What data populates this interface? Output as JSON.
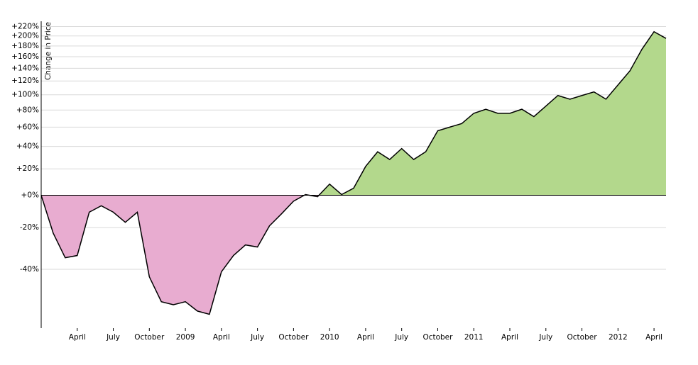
{
  "chart_data": {
    "type": "area",
    "y_label": "Change in Price",
    "y_scale": "log",
    "grid": true,
    "positive_color": "#b3d88c",
    "negative_color": "#e8acd0",
    "line_color": "#000000",
    "x": [
      "2008-01",
      "2008-02",
      "2008-03",
      "2008-04",
      "2008-05",
      "2008-06",
      "2008-07",
      "2008-08",
      "2008-09",
      "2008-10",
      "2008-11",
      "2008-12",
      "2009-01",
      "2009-02",
      "2009-03",
      "2009-04",
      "2009-05",
      "2009-06",
      "2009-07",
      "2009-08",
      "2009-09",
      "2009-10",
      "2009-11",
      "2009-12",
      "2010-01",
      "2010-02",
      "2010-03",
      "2010-04",
      "2010-05",
      "2010-06",
      "2010-07",
      "2010-08",
      "2010-09",
      "2010-10",
      "2010-11",
      "2010-12",
      "2011-01",
      "2011-02",
      "2011-03",
      "2011-04",
      "2011-05",
      "2011-06",
      "2011-07",
      "2011-08",
      "2011-09",
      "2011-10",
      "2011-11",
      "2011-12",
      "2012-01",
      "2012-02",
      "2012-03",
      "2012-04",
      "2012-05"
    ],
    "values": [
      0,
      -23,
      -35,
      -34,
      -11,
      -7,
      -11,
      -17,
      -11,
      -43,
      -52,
      -53,
      -52,
      -55,
      -56,
      -41,
      -34,
      -29,
      -30,
      -19,
      -12,
      -4,
      0.5,
      -1,
      8,
      0.5,
      5,
      22,
      35,
      28,
      38,
      28,
      35,
      56,
      60,
      64,
      76,
      81,
      76,
      76,
      81,
      72,
      85,
      99,
      94,
      99,
      104,
      94,
      114,
      136,
      174,
      209,
      195
    ],
    "xlim": [
      "2008-01",
      "2012-05"
    ],
    "xticks": [
      {
        "value": "2008-04",
        "label": "April"
      },
      {
        "value": "2008-07",
        "label": "July"
      },
      {
        "value": "2008-10",
        "label": "October"
      },
      {
        "value": "2009-01",
        "label": "2009"
      },
      {
        "value": "2009-04",
        "label": "April"
      },
      {
        "value": "2009-07",
        "label": "July"
      },
      {
        "value": "2009-10",
        "label": "October"
      },
      {
        "value": "2010-01",
        "label": "2010"
      },
      {
        "value": "2010-04",
        "label": "April"
      },
      {
        "value": "2010-07",
        "label": "July"
      },
      {
        "value": "2010-10",
        "label": "October"
      },
      {
        "value": "2011-01",
        "label": "2011"
      },
      {
        "value": "2011-04",
        "label": "April"
      },
      {
        "value": "2011-07",
        "label": "July"
      },
      {
        "value": "2011-10",
        "label": "October"
      },
      {
        "value": "2012-01",
        "label": "2012"
      },
      {
        "value": "2012-04",
        "label": "April"
      }
    ],
    "ylim": [
      -60,
      232
    ],
    "yticks": [
      {
        "value": 220,
        "label": "+220%"
      },
      {
        "value": 200,
        "label": "+200%"
      },
      {
        "value": 180,
        "label": "+180%"
      },
      {
        "value": 160,
        "label": "+160%"
      },
      {
        "value": 140,
        "label": "+140%"
      },
      {
        "value": 120,
        "label": "+120%"
      },
      {
        "value": 100,
        "label": "+100%"
      },
      {
        "value": 80,
        "label": "+80%"
      },
      {
        "value": 60,
        "label": "+60%"
      },
      {
        "value": 40,
        "label": "+40%"
      },
      {
        "value": 20,
        "label": "+20%"
      },
      {
        "value": 0,
        "label": "+0%"
      },
      {
        "value": -20,
        "label": "-20%"
      },
      {
        "value": -40,
        "label": "-40%"
      }
    ]
  }
}
